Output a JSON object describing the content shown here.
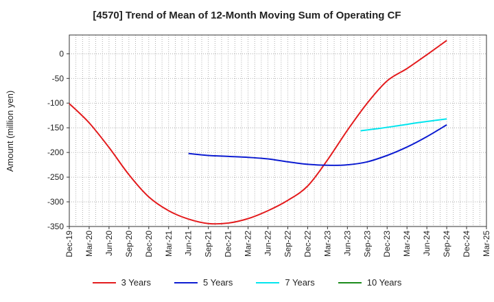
{
  "chart_data": {
    "type": "line",
    "title": "[4570]  Trend of Mean of 12-Month Moving Sum of Operating CF",
    "xlabel": "",
    "ylabel": "Amount (million yen)",
    "ylim": [
      -350,
      38
    ],
    "yticks": [
      0,
      -50,
      -100,
      -150,
      -200,
      -250,
      -300,
      -350
    ],
    "x_tick_labels": [
      "Dec-19",
      "Mar-20",
      "Jun-20",
      "Sep-20",
      "Dec-20",
      "Mar-21",
      "Jun-21",
      "Sep-21",
      "Dec-21",
      "Mar-22",
      "Jun-22",
      "Sep-22",
      "Dec-22",
      "Mar-23",
      "Jun-23",
      "Sep-23",
      "Dec-23",
      "Mar-24",
      "Jun-24",
      "Sep-24",
      "Dec-24",
      "Mar-25"
    ],
    "x_range_months": [
      0,
      63
    ],
    "series": [
      {
        "name": "3 Years",
        "color": "#e31a1c",
        "x": [
          0,
          3,
          6,
          9,
          12,
          15,
          18,
          21,
          24,
          27,
          30,
          33,
          36,
          39,
          42,
          45,
          48,
          51,
          54,
          57
        ],
        "y": [
          -101,
          -140,
          -190,
          -245,
          -290,
          -318,
          -335,
          -344,
          -343,
          -334,
          -318,
          -297,
          -268,
          -215,
          -155,
          -100,
          -55,
          -30,
          -2,
          27
        ]
      },
      {
        "name": "5 Years",
        "color": "#0b1bd1",
        "x": [
          18,
          21,
          24,
          27,
          30,
          33,
          36,
          39,
          42,
          45,
          48,
          51,
          54,
          57
        ],
        "y": [
          -202,
          -206,
          -208,
          -210,
          -213,
          -219,
          -224,
          -226,
          -225,
          -219,
          -206,
          -189,
          -168,
          -144
        ]
      },
      {
        "name": "7 Years",
        "color": "#00e5ee",
        "x": [
          44,
          47,
          50,
          53,
          57
        ],
        "y": [
          -156,
          -151,
          -145,
          -139,
          -132
        ]
      },
      {
        "name": "10 Years",
        "color": "#1a8a1a",
        "x": [],
        "y": []
      }
    ]
  }
}
